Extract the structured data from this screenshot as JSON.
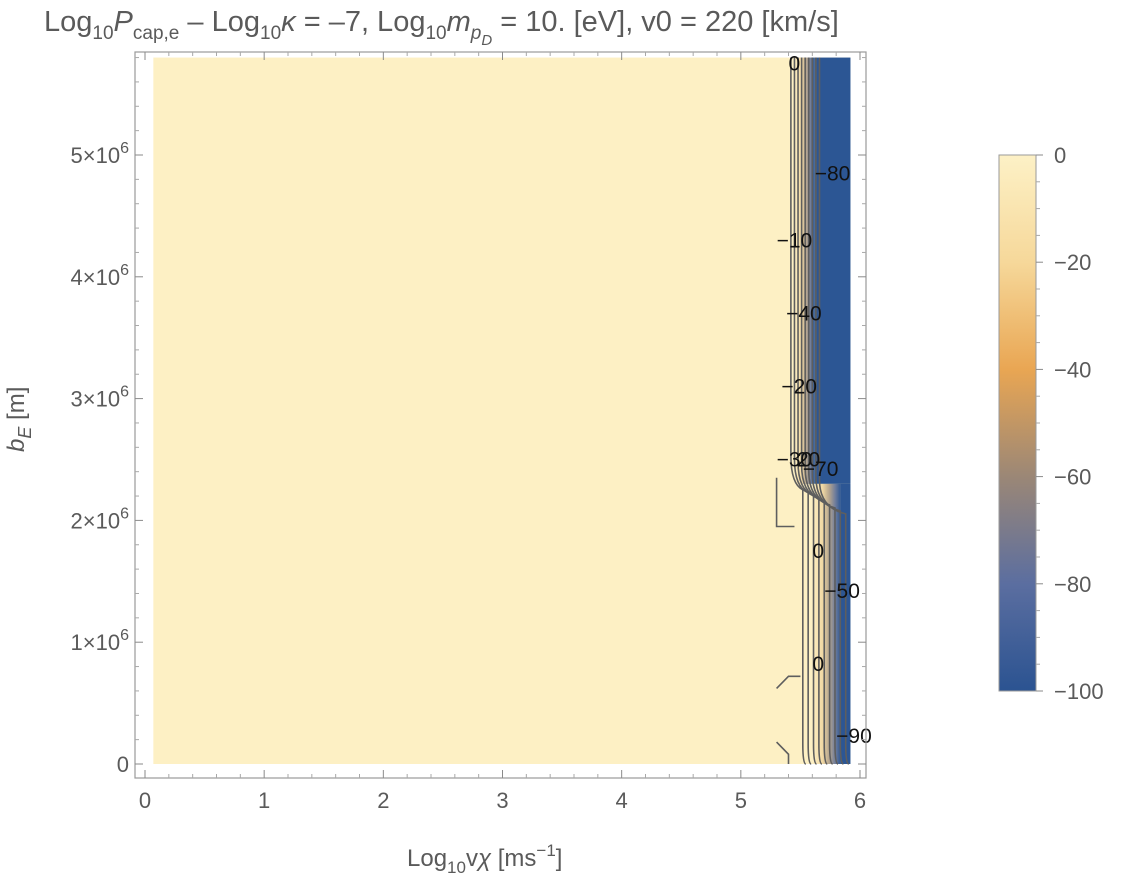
{
  "chart_data": {
    "type": "heatmap",
    "title_parts": {
      "log": "Log",
      "ten": "10",
      "P": "P",
      "P_sub": "cap,e",
      "minus_log": " – Log",
      "kappa": "κ",
      "kappa_value": " = –7, Log",
      "m": "m",
      "m_sub": "p",
      "m_subsub": "D",
      "rest": " = 10. [eV], v0 = 220 [km/s]"
    },
    "xlabel_parts": {
      "log": "Log",
      "ten": "10",
      "v": "v",
      "chi": "χ",
      "unit": " [ms",
      "exp": "−1",
      "close": "]"
    },
    "ylabel_parts": {
      "b": "b",
      "sub": "E",
      "unit": " [m]"
    },
    "x_axis": {
      "range": [
        0,
        6
      ],
      "ticks": [
        "0",
        "1",
        "2",
        "3",
        "4",
        "5",
        "6"
      ]
    },
    "y_axis": {
      "range": [
        0,
        5800000
      ],
      "ticks": [
        {
          "value": 0,
          "label": "0"
        },
        {
          "value": 1000000,
          "mant": "1",
          "times": "×10",
          "exp": "6"
        },
        {
          "value": 2000000,
          "mant": "2",
          "times": "×10",
          "exp": "6"
        },
        {
          "value": 3000000,
          "mant": "3",
          "times": "×10",
          "exp": "6"
        },
        {
          "value": 4000000,
          "mant": "4",
          "times": "×10",
          "exp": "6"
        },
        {
          "value": 5000000,
          "mant": "5",
          "times": "×10",
          "exp": "6"
        }
      ]
    },
    "data_extent": {
      "x": [
        0.07,
        5.92
      ],
      "y": [
        0,
        5800000
      ]
    },
    "field_description": {
      "background_value": 0,
      "transition_start_x_top": 5.45,
      "transition_end_x_top": 5.6,
      "blue_x_top": 5.62,
      "step_y": 2300000
    },
    "contour_lines_x": [
      5.42,
      5.45,
      5.48,
      5.51,
      5.54,
      5.57,
      5.6,
      5.63,
      5.66
    ],
    "contour_labels": [
      {
        "text": "0",
        "x": 5.4,
        "y": 5750000.0
      },
      {
        "text": "−80",
        "x": 5.62,
        "y": 4850000.0
      },
      {
        "text": "−10",
        "x": 5.3,
        "y": 4300000.0
      },
      {
        "text": "−40",
        "x": 5.38,
        "y": 3700000.0
      },
      {
        "text": "−20",
        "x": 5.34,
        "y": 3100000.0
      },
      {
        "text": "−30",
        "x": 5.3,
        "y": 2500000.0
      },
      {
        "text": "20",
        "x": 5.47,
        "y": 2500000.0
      },
      {
        "text": "−70",
        "x": 5.52,
        "y": 2420000.0
      },
      {
        "text": "0",
        "x": 5.6,
        "y": 1750000.0
      },
      {
        "text": "−50",
        "x": 5.7,
        "y": 1420000.0
      },
      {
        "text": "0",
        "x": 5.6,
        "y": 820000.0
      },
      {
        "text": "−90",
        "x": 5.8,
        "y": 230000.0
      }
    ],
    "colorbar": {
      "range": [
        -100,
        0
      ],
      "ticks": [
        "0",
        "−20",
        "−40",
        "−60",
        "−80",
        "−100"
      ],
      "colors": [
        "#fdf1c6",
        "#f6d89a",
        "#e9a653",
        "#9b8776",
        "#5b6ea0",
        "#2b5391"
      ]
    },
    "colors": {
      "background_field": "#fdf0c4",
      "blue_field": "#2c5694",
      "contour": "#5e5e5e",
      "frame": "#9a9a9a"
    }
  }
}
